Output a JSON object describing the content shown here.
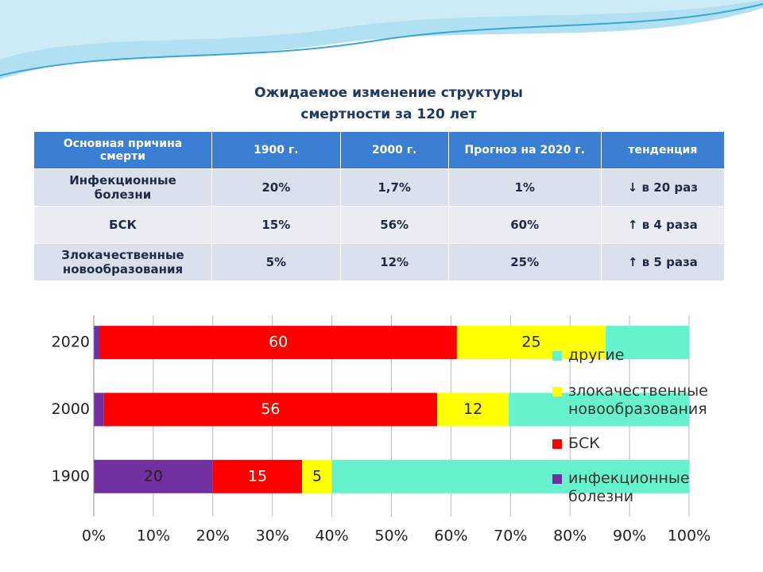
{
  "title": "Ожидаемое изменение структуры смертности за 120 лет",
  "table": {
    "header": [
      "Основная причина смерти",
      "1900 г.",
      "2000 г.",
      "Прогноз на 2020 г.",
      "тенденция"
    ],
    "rows": [
      [
        "Инфекционные болезни",
        "20%",
        "1,7%",
        "1%",
        "↓ в 20 раз"
      ],
      [
        "БСК",
        "15%",
        "56%",
        "60%",
        "↑ в 4 раза"
      ],
      [
        "Злокачественные новообразования",
        "5%",
        "12%",
        "25%",
        "↑ в 5 раза"
      ]
    ]
  },
  "chart_data": {
    "type": "stacked_barh",
    "categories": [
      "1900",
      "2000",
      "2020"
    ],
    "series": [
      {
        "name": "инфекционные болезни",
        "color": "#7030a0",
        "values": [
          20,
          1.7,
          1
        ],
        "value_labels": [
          "20",
          null,
          null
        ]
      },
      {
        "name": "БСК",
        "color": "#ff0000",
        "values": [
          15,
          56,
          60
        ],
        "value_labels": [
          "15",
          "56",
          "60"
        ]
      },
      {
        "name": "злокачественные новообразования",
        "color": "#ffff00",
        "values": [
          5,
          12,
          25
        ],
        "value_labels": [
          "5",
          "12",
          "25"
        ]
      },
      {
        "name": "другие",
        "color": "#66f2cc",
        "values": [
          60,
          30.3,
          14
        ],
        "value_labels": [
          null,
          null,
          null
        ]
      }
    ],
    "xlim": [
      0,
      100
    ],
    "xticks": [
      {
        "value": 0,
        "label": "0%"
      },
      {
        "value": 10,
        "label": "10%"
      },
      {
        "value": 20,
        "label": "20%"
      },
      {
        "value": 30,
        "label": "30%"
      },
      {
        "value": 40,
        "label": "40%"
      },
      {
        "value": 50,
        "label": "50%"
      },
      {
        "value": 60,
        "label": "60%"
      },
      {
        "value": 70,
        "label": "70%"
      },
      {
        "value": 80,
        "label": "80%"
      },
      {
        "value": 90,
        "label": "90%"
      },
      {
        "value": 100,
        "label": "100%"
      }
    ],
    "grid": true,
    "legend": "right"
  }
}
